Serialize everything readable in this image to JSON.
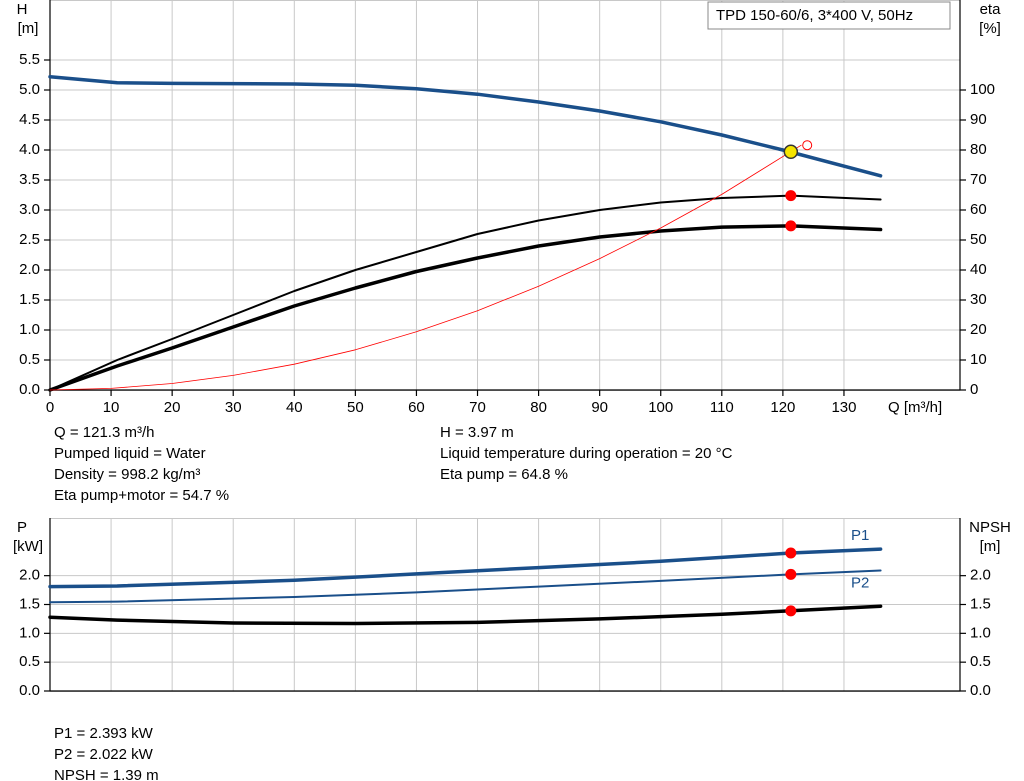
{
  "chart_data": [
    {
      "type": "line",
      "title": "TPD 150-60/6, 3*400 V, 50Hz",
      "y_label": "H",
      "y_unit": "[m]",
      "y2_label": "eta",
      "y2_unit": "[%]",
      "x_label": "Q [m³/h]",
      "xlim": [
        0,
        149
      ],
      "xticks": [
        0,
        10,
        20,
        30,
        40,
        50,
        60,
        70,
        80,
        90,
        100,
        110,
        120,
        130
      ],
      "ylim": [
        0,
        6.5
      ],
      "yticks": [
        {
          "value": 0,
          "label": "0.0"
        },
        0.5,
        {
          "value": 1,
          "label": "1.0"
        },
        1.5,
        {
          "value": 2,
          "label": "2.0"
        },
        2.5,
        {
          "value": 3,
          "label": "3.0"
        },
        3.5,
        {
          "value": 4,
          "label": "4.0"
        },
        4.5,
        {
          "value": 5,
          "label": "5.0"
        },
        5.5
      ],
      "y2lim": [
        0,
        130
      ],
      "y2ticks": [
        0,
        10,
        20,
        30,
        40,
        50,
        60,
        70,
        80,
        90,
        100
      ],
      "grid": true,
      "series": [
        {
          "color": "#1a4f8a",
          "x": [
            0,
            11,
            20,
            40,
            50,
            60,
            70,
            80,
            90,
            100,
            110,
            120,
            136
          ],
          "values": [
            5.22,
            5.12,
            5.11,
            5.1,
            5.08,
            5.02,
            4.93,
            4.8,
            4.65,
            4.47,
            4.25,
            4.0,
            3.57
          ]
        },
        {
          "color": "#000000",
          "axis": "y2",
          "x": [
            0,
            11,
            20,
            30,
            40,
            50,
            60,
            70,
            80,
            90,
            100,
            110,
            121.3,
            136
          ],
          "values": [
            0,
            10,
            17,
            25,
            33,
            40,
            46,
            52,
            56.5,
            60,
            62.5,
            64,
            64.8,
            63.5
          ]
        },
        {
          "color": "#000000",
          "axis": "y2",
          "x": [
            0,
            11,
            20,
            30,
            40,
            50,
            60,
            70,
            80,
            90,
            100,
            110,
            121.3,
            136
          ],
          "values": [
            0,
            8,
            14,
            21,
            28,
            34,
            39.5,
            44,
            48,
            51,
            53,
            54.3,
            54.7,
            53.5
          ]
        },
        {
          "color": "#ff0000",
          "x": [
            0,
            10,
            20,
            30,
            40,
            50,
            60,
            70,
            80,
            90,
            100,
            110,
            123
          ],
          "values": [
            0,
            0.027,
            0.108,
            0.243,
            0.43,
            0.67,
            0.97,
            1.32,
            1.73,
            2.19,
            2.7,
            3.26,
            4.08
          ]
        }
      ],
      "points": [
        {
          "x": 121.3,
          "y": 64.8,
          "axis": "y2",
          "color": "#ff0000"
        },
        {
          "x": 121.3,
          "y": 54.7,
          "axis": "y2",
          "color": "#ff0000"
        },
        {
          "x": 121.3,
          "y": 3.97,
          "color": "#f5e400"
        }
      ],
      "info": [
        [
          "Q = 121.3 m³/h",
          "Pumped liquid = Water",
          "Density = 998.2 kg/m³",
          "Eta pump+motor = 54.7 %"
        ],
        [
          "H = 3.97 m",
          "Liquid temperature during operation = 20 °C",
          "Eta pump = 64.8 %"
        ]
      ]
    },
    {
      "type": "line",
      "y_label": "P",
      "y_unit": "[kW]",
      "y2_label": "NPSH",
      "y2_unit": "[m]",
      "xlim": [
        0,
        149
      ],
      "ylim": [
        0,
        3
      ],
      "yticks": [
        {
          "value": 0,
          "label": "0.0"
        },
        0.5,
        {
          "value": 1,
          "label": "1.0"
        },
        1.5,
        {
          "value": 2,
          "label": "2.0"
        }
      ],
      "y2lim": [
        0,
        3
      ],
      "y2ticks": [
        {
          "value": 0,
          "label": "0.0"
        },
        0.5,
        {
          "value": 1,
          "label": "1.0"
        },
        1.5,
        {
          "value": 2,
          "label": "2.0"
        }
      ],
      "grid": true,
      "series": [
        {
          "name": "P1",
          "color": "#1a4f8a",
          "x": [
            0,
            11,
            40,
            60,
            80,
            100,
            121.3,
            136
          ],
          "values": [
            1.81,
            1.82,
            1.92,
            2.03,
            2.14,
            2.25,
            2.393,
            2.46
          ]
        },
        {
          "name": "P2",
          "color": "#1a4f8a",
          "x": [
            0,
            11,
            40,
            60,
            80,
            100,
            121.3,
            136
          ],
          "values": [
            1.54,
            1.55,
            1.63,
            1.71,
            1.81,
            1.91,
            2.022,
            2.09
          ]
        },
        {
          "color": "#000000",
          "axis": "y2",
          "x": [
            0,
            11,
            30,
            50,
            70,
            90,
            110,
            121.3,
            136
          ],
          "values": [
            1.28,
            1.23,
            1.18,
            1.17,
            1.19,
            1.25,
            1.33,
            1.39,
            1.47
          ]
        }
      ],
      "points": [
        {
          "x": 121.3,
          "y": 2.393,
          "color": "#ff0000"
        },
        {
          "x": 121.3,
          "y": 2.022,
          "color": "#ff0000"
        },
        {
          "x": 121.3,
          "y": 1.39,
          "axis": "y2",
          "color": "#ff0000"
        }
      ],
      "info": [
        [
          "P1 = 2.393 kW",
          "P2 = 2.022 kW",
          "NPSH = 1.39 m"
        ]
      ]
    }
  ]
}
